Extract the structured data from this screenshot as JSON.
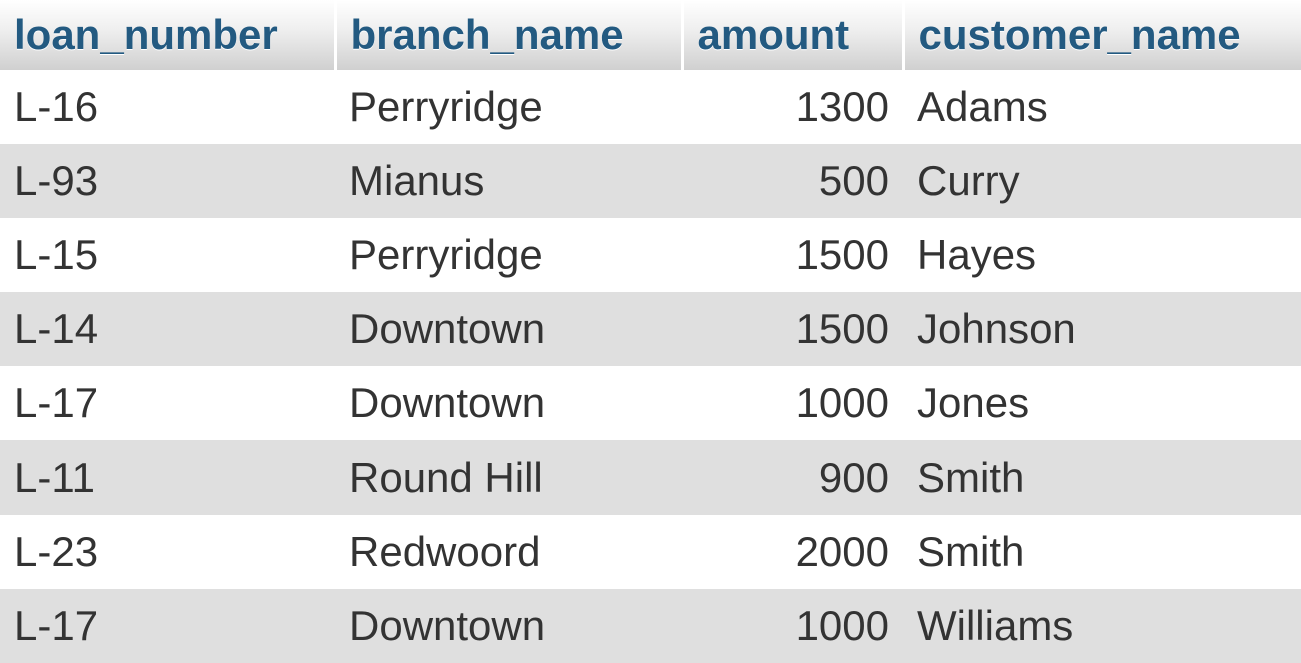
{
  "columns": {
    "loan_number": "loan_number",
    "branch_name": "branch_name",
    "amount": "amount",
    "customer_name": "customer_name"
  },
  "rows": [
    {
      "loan_number": "L-16",
      "branch_name": "Perryridge",
      "amount": "1300",
      "customer_name": "Adams"
    },
    {
      "loan_number": "L-93",
      "branch_name": "Mianus",
      "amount": "500",
      "customer_name": "Curry"
    },
    {
      "loan_number": "L-15",
      "branch_name": "Perryridge",
      "amount": "1500",
      "customer_name": "Hayes"
    },
    {
      "loan_number": "L-14",
      "branch_name": "Downtown",
      "amount": "1500",
      "customer_name": "Johnson"
    },
    {
      "loan_number": "L-17",
      "branch_name": "Downtown",
      "amount": "1000",
      "customer_name": "Jones"
    },
    {
      "loan_number": "L-11",
      "branch_name": "Round Hill",
      "amount": "900",
      "customer_name": "Smith"
    },
    {
      "loan_number": "L-23",
      "branch_name": "Redwoord",
      "amount": "2000",
      "customer_name": "Smith"
    },
    {
      "loan_number": "L-17",
      "branch_name": "Downtown",
      "amount": "1000",
      "customer_name": "Williams"
    }
  ]
}
